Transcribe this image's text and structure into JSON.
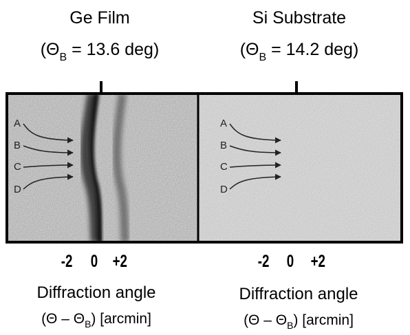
{
  "panels": [
    {
      "title": "Ge Film",
      "bragg_prefix": "(Θ",
      "bragg_sub": "B",
      "bragg_suffix": " = 13.6 deg)",
      "tick_labels": [
        "-2",
        "0",
        "+2"
      ],
      "xlabel_line1": "Diffraction angle",
      "xlabel_line2_prefix": "(Θ – Θ",
      "xlabel_line2_sub": "B",
      "xlabel_line2_suffix": ") [arcmin]",
      "arrow_labels": [
        "A",
        "B",
        "C",
        "D"
      ]
    },
    {
      "title": "Si Substrate",
      "bragg_prefix": "(Θ",
      "bragg_sub": "B",
      "bragg_suffix": " = 14.2 deg)",
      "tick_labels": [
        "-2",
        "0",
        "+2"
      ],
      "xlabel_line1": "Diffraction angle",
      "xlabel_line2_prefix": "(Θ – Θ",
      "xlabel_line2_sub": "B",
      "xlabel_line2_suffix": ") [arcmin]",
      "arrow_labels": [
        "A",
        "B",
        "C",
        "D"
      ]
    }
  ]
}
